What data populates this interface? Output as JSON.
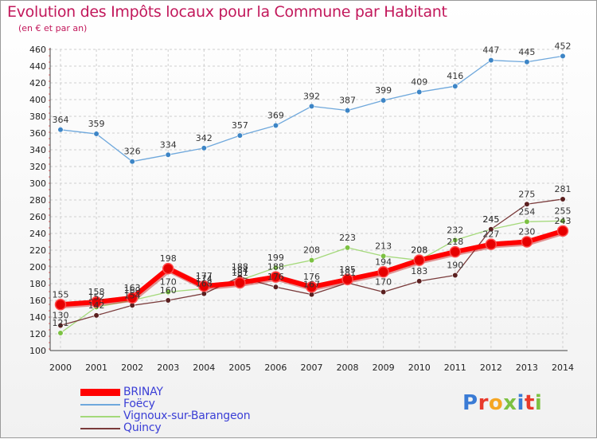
{
  "title": "Evolution des Impôts locaux pour la Commune par Habitant",
  "subtitle": "(en € et par an)",
  "logo": {
    "text": "Proxiti",
    "colors": [
      "#3a7bd5",
      "#e8392b",
      "#f5a623",
      "#7cc142",
      "#3a7bd5",
      "#e8392b",
      "#7cc142"
    ]
  },
  "chart_data": {
    "type": "line",
    "x": [
      2000,
      2001,
      2002,
      2003,
      2004,
      2005,
      2006,
      2007,
      2008,
      2009,
      2010,
      2011,
      2012,
      2013,
      2014
    ],
    "ylim": [
      100,
      460
    ],
    "yticks": [
      100,
      120,
      140,
      160,
      180,
      200,
      220,
      240,
      260,
      280,
      300,
      320,
      340,
      360,
      380,
      400,
      420,
      440,
      460
    ],
    "grid": true,
    "legend_position": "bottom-left",
    "series": [
      {
        "name": "Foëcy",
        "color": "#6fa8dc",
        "marker": "#3d85c6",
        "values": [
          364,
          359,
          326,
          334,
          342,
          357,
          369,
          392,
          387,
          399,
          409,
          416,
          447,
          445,
          452
        ]
      },
      {
        "name": "Vignoux-sur-Barangeon",
        "color": "#a4d97a",
        "marker": "#7cc142",
        "values": [
          121,
          152,
          160,
          170,
          174,
          184,
          199,
          208,
          223,
          213,
          208,
          232,
          245,
          254,
          255
        ]
      },
      {
        "name": "Quincy",
        "color": "#7a3b3b",
        "marker": "#5a1f1f",
        "values": [
          130,
          142,
          154,
          160,
          168,
          188,
          176,
          167,
          181,
          170,
          183,
          190,
          245,
          275,
          281
        ]
      },
      {
        "name": "BRINAY",
        "color": "#ff0000",
        "marker": "#e60000",
        "values": [
          155,
          158,
          163,
          198,
          177,
          181,
          188,
          176,
          185,
          194,
          208,
          218,
          227,
          230,
          243
        ]
      }
    ],
    "legend_order": [
      "BRINAY",
      "Foëcy",
      "Vignoux-sur-Barangeon",
      "Quincy"
    ]
  }
}
